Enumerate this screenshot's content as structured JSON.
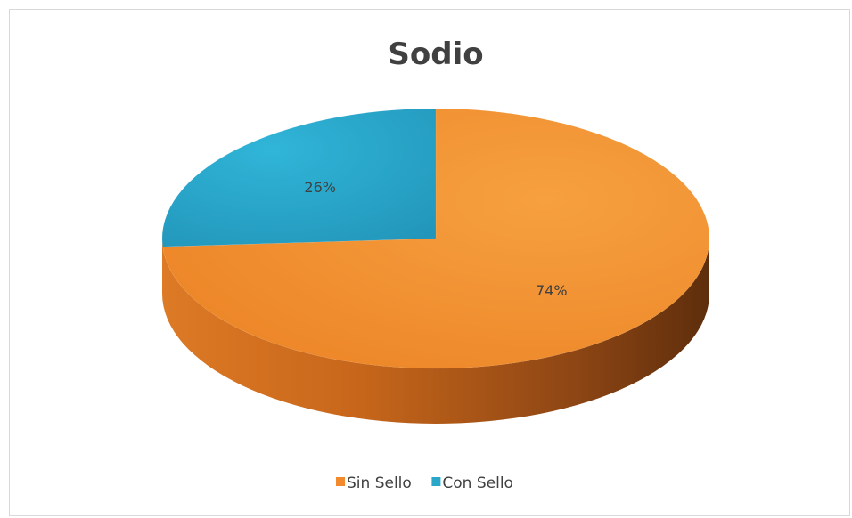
{
  "chart_data": {
    "type": "pie",
    "title": "Sodio",
    "style": "3d",
    "legend_position": "bottom",
    "slices": [
      {
        "name": "Sin Sello",
        "value": 74,
        "label": "74%",
        "color": "#f28a2d"
      },
      {
        "name": "Con Sello",
        "value": 26,
        "label": "26%",
        "color": "#29a6c8"
      }
    ]
  }
}
